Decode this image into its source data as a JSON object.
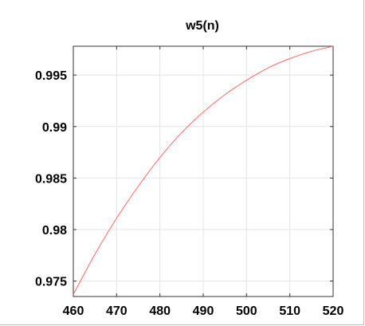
{
  "chart_data": {
    "type": "line",
    "title": "w5(n)",
    "xlabel": "",
    "ylabel": "",
    "xlim": [
      460,
      520
    ],
    "ylim": [
      0.9735,
      0.9978
    ],
    "xticks": [
      460,
      470,
      480,
      490,
      500,
      510,
      520
    ],
    "xtick_labels": [
      "460",
      "470",
      "480",
      "490",
      "500",
      "510",
      "520"
    ],
    "yticks": [
      0.975,
      0.98,
      0.985,
      0.99,
      0.995
    ],
    "ytick_labels": [
      "0.975",
      "0.98",
      "0.985",
      "0.99",
      "0.995"
    ],
    "grid": true,
    "legend": "none",
    "series": [
      {
        "color": "#ff6666",
        "x": [
          460,
          465,
          470,
          475,
          480,
          485,
          490,
          495,
          500,
          505,
          510,
          515,
          520
        ],
        "y": [
          0.9737,
          0.9776,
          0.9811,
          0.9842,
          0.987,
          0.9894,
          0.9914,
          0.9931,
          0.9945,
          0.9957,
          0.9966,
          0.9973,
          0.9978
        ]
      }
    ]
  }
}
